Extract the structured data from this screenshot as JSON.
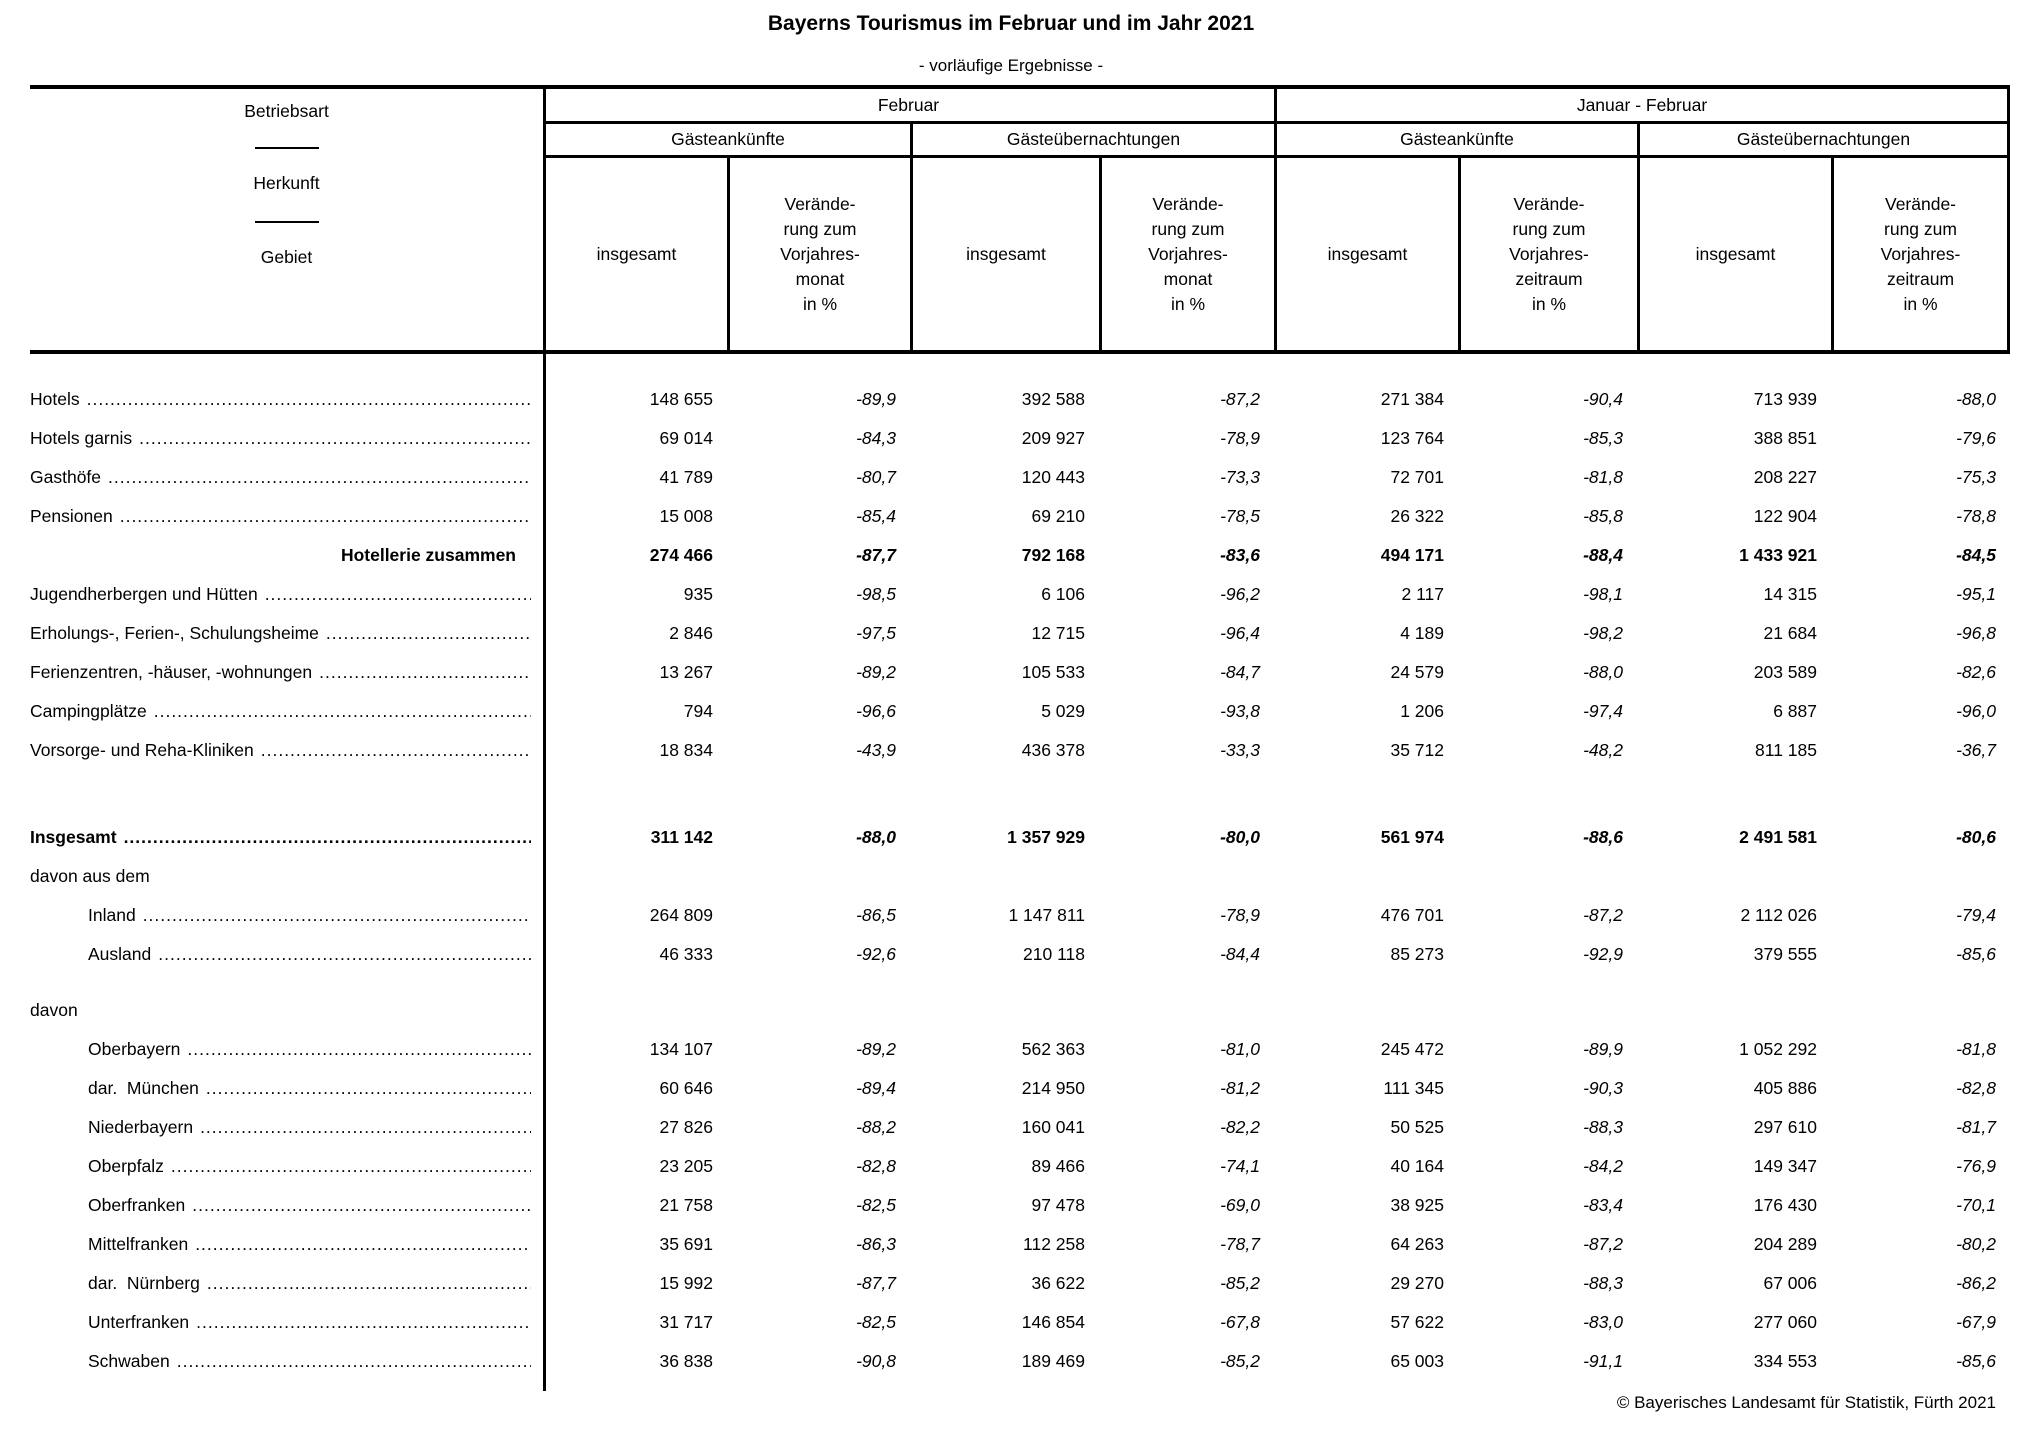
{
  "title": "Bayerns Tourismus im Februar und im Jahr 2021",
  "subtitle": "- vorläufige Ergebnisse -",
  "stub": {
    "parts": [
      "Betriebsart",
      "Herkunft",
      "Gebiet"
    ]
  },
  "columns": {
    "groups": [
      {
        "label": "Februar",
        "subgroups": [
          "Gästeankünfte",
          "Gästeübernachtungen"
        ],
        "total_label": "insgesamt",
        "change_label_lines": [
          "Verände-",
          "rung zum",
          "Vorjahres-",
          "monat",
          "in %"
        ]
      },
      {
        "label": "Januar - Februar",
        "subgroups": [
          "Gästeankünfte",
          "Gästeübernachtungen"
        ],
        "total_label": "insgesamt",
        "change_label_lines": [
          "Verände-",
          "rung zum",
          "Vorjahres-",
          "zeitraum",
          "in %"
        ]
      }
    ]
  },
  "rows": [
    {
      "label": "Hotels",
      "leaders": true,
      "values": [
        "148 655",
        "-89,9",
        "392 588",
        "-87,2",
        "271 384",
        "-90,4",
        "713 939",
        "-88,0"
      ]
    },
    {
      "label": "Hotels garnis",
      "leaders": true,
      "values": [
        "69 014",
        "-84,3",
        "209 927",
        "-78,9",
        "123 764",
        "-85,3",
        "388 851",
        "-79,6"
      ]
    },
    {
      "label": "Gasthöfe",
      "leaders": true,
      "values": [
        "41 789",
        "-80,7",
        "120 443",
        "-73,3",
        "72 701",
        "-81,8",
        "208 227",
        "-75,3"
      ]
    },
    {
      "label": "Pensionen",
      "leaders": true,
      "values": [
        "15 008",
        "-85,4",
        "69 210",
        "-78,5",
        "26 322",
        "-85,8",
        "122 904",
        "-78,8"
      ]
    },
    {
      "label": "Hotellerie zusammen",
      "bold": true,
      "align": "right",
      "values": [
        "274 466",
        "-87,7",
        "792 168",
        "-83,6",
        "494 171",
        "-88,4",
        "1 433 921",
        "-84,5"
      ]
    },
    {
      "label": "Jugendherbergen und Hütten",
      "leaders": true,
      "values": [
        "935",
        "-98,5",
        "6 106",
        "-96,2",
        "2 117",
        "-98,1",
        "14 315",
        "-95,1"
      ]
    },
    {
      "label": "Erholungs-, Ferien-, Schulungsheime",
      "leaders": true,
      "values": [
        "2 846",
        "-97,5",
        "12 715",
        "-96,4",
        "4 189",
        "-98,2",
        "21 684",
        "-96,8"
      ]
    },
    {
      "label": "Ferienzentren, -häuser, -wohnungen",
      "leaders": true,
      "values": [
        "13 267",
        "-89,2",
        "105 533",
        "-84,7",
        "24 579",
        "-88,0",
        "203 589",
        "-82,6"
      ]
    },
    {
      "label": "Campingplätze",
      "leaders": true,
      "values": [
        "794",
        "-96,6",
        "5 029",
        "-93,8",
        "1 206",
        "-97,4",
        "6 887",
        "-96,0"
      ]
    },
    {
      "label": "Vorsorge- und Reha-Kliniken",
      "leaders": true,
      "values": [
        "18 834",
        "-43,9",
        "436 378",
        "-33,3",
        "35 712",
        "-48,2",
        "811 185",
        "-36,7"
      ]
    },
    {
      "label": "Insgesamt",
      "bold": true,
      "leaders": true,
      "gap": "large",
      "values": [
        "311 142",
        "-88,0",
        "1 357 929",
        "-80,0",
        "561 974",
        "-88,6",
        "2 491 581",
        "-80,6"
      ]
    },
    {
      "label": "davon aus dem",
      "values": []
    },
    {
      "label": "Inland",
      "indent": true,
      "leaders": true,
      "values": [
        "264 809",
        "-86,5",
        "1 147 811",
        "-78,9",
        "476 701",
        "-87,2",
        "2 112 026",
        "-79,4"
      ]
    },
    {
      "label": "Ausland",
      "indent": true,
      "leaders": true,
      "values": [
        "46 333",
        "-92,6",
        "210 118",
        "-84,4",
        "85 273",
        "-92,9",
        "379 555",
        "-85,6"
      ]
    },
    {
      "label": "davon",
      "gap": "small",
      "values": []
    },
    {
      "label": "Oberbayern",
      "indent": true,
      "leaders": true,
      "values": [
        "134 107",
        "-89,2",
        "562 363",
        "-81,0",
        "245 472",
        "-89,9",
        "1 052 292",
        "-81,8"
      ]
    },
    {
      "label": "dar.  München",
      "indent": true,
      "leaders": true,
      "values": [
        "60 646",
        "-89,4",
        "214 950",
        "-81,2",
        "111 345",
        "-90,3",
        "405 886",
        "-82,8"
      ]
    },
    {
      "label": "Niederbayern",
      "indent": true,
      "leaders": true,
      "values": [
        "27 826",
        "-88,2",
        "160 041",
        "-82,2",
        "50 525",
        "-88,3",
        "297 610",
        "-81,7"
      ]
    },
    {
      "label": "Oberpfalz",
      "indent": true,
      "leaders": true,
      "values": [
        "23 205",
        "-82,8",
        "89 466",
        "-74,1",
        "40 164",
        "-84,2",
        "149 347",
        "-76,9"
      ]
    },
    {
      "label": "Oberfranken",
      "indent": true,
      "leaders": true,
      "values": [
        "21 758",
        "-82,5",
        "97 478",
        "-69,0",
        "38 925",
        "-83,4",
        "176 430",
        "-70,1"
      ]
    },
    {
      "label": "Mittelfranken",
      "indent": true,
      "leaders": true,
      "values": [
        "35 691",
        "-86,3",
        "112 258",
        "-78,7",
        "64 263",
        "-87,2",
        "204 289",
        "-80,2"
      ]
    },
    {
      "label": "dar.  Nürnberg",
      "indent": true,
      "leaders": true,
      "values": [
        "15 992",
        "-87,7",
        "36 622",
        "-85,2",
        "29 270",
        "-88,3",
        "67 006",
        "-86,2"
      ]
    },
    {
      "label": "Unterfranken",
      "indent": true,
      "leaders": true,
      "values": [
        "31 717",
        "-82,5",
        "146 854",
        "-67,8",
        "57 622",
        "-83,0",
        "277 060",
        "-67,9"
      ]
    },
    {
      "label": "Schwaben",
      "indent": true,
      "leaders": true,
      "values": [
        "36 838",
        "-90,8",
        "189 469",
        "-85,2",
        "65 003",
        "-91,1",
        "334 553",
        "-85,6"
      ]
    }
  ],
  "footer": {
    "copyright": "© Bayerisches Landesamt für Statistik, Fürth 2021"
  }
}
